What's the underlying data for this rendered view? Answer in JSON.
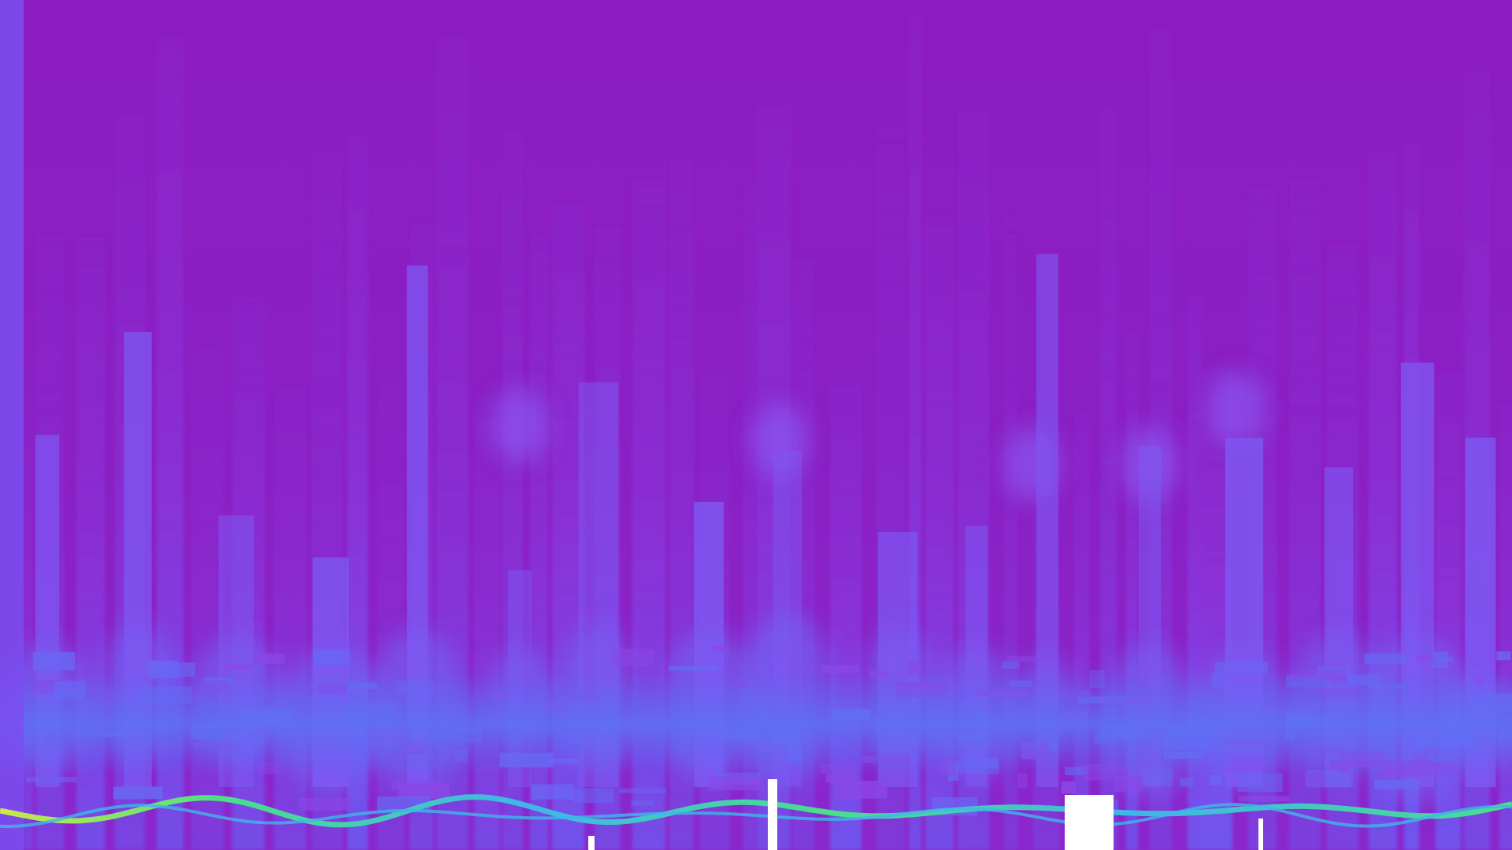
{
  "scene": {
    "subject": "abstract-audio-spectrogram-visualization",
    "palette": {
      "background_top": "#8c1dc2",
      "background_mid": "#861bbd",
      "column_light": "#8a3ee6",
      "column_glow": "#7b4cf2",
      "band_blue": "#5b6ef5",
      "wave_green": "#49e08a",
      "wave_cyan": "#3fb6e8",
      "wave_yellow": "#c9e84a",
      "left_edge_strip": "#7a4ff0",
      "gap_white": "#ffffff"
    }
  }
}
